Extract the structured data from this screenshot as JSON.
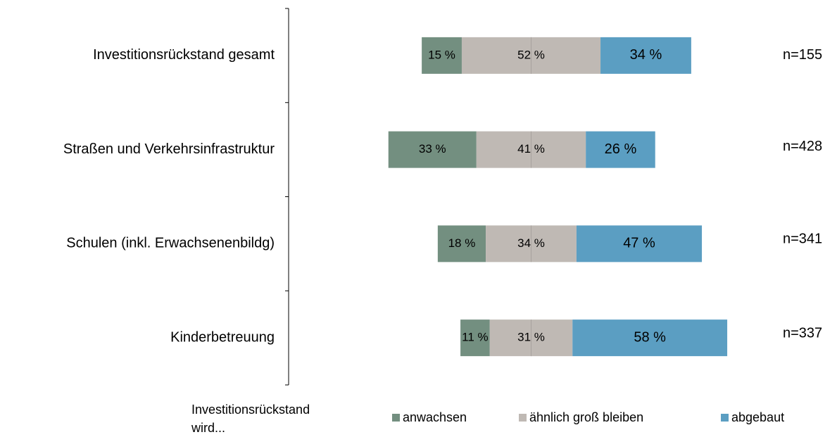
{
  "chart_data": {
    "type": "diverging_bar",
    "categories": [
      "Investitionsrückstand gesamt",
      "Straßen und Verkehrsinfrastruktur",
      "Schulen (inkl. Erwachsenenbildg)",
      "Kinderbetreuung"
    ],
    "series": [
      {
        "name": "anwachsen",
        "color": "#738f80",
        "values": [
          15,
          33,
          18,
          11
        ],
        "value_labels": [
          "15 %",
          "33 %",
          "18 %",
          "11 %"
        ]
      },
      {
        "name": "ähnlich groß bleiben",
        "color": "#bfb9b4",
        "values": [
          52,
          41,
          34,
          31
        ],
        "value_labels": [
          "52 %",
          "41 %",
          "34 %",
          "31 %"
        ]
      },
      {
        "name": "abgebaut",
        "color": "#5b9ec2",
        "values": [
          34,
          26,
          47,
          58
        ],
        "value_labels": [
          "34 %",
          "26 %",
          "47 %",
          "58 %"
        ]
      }
    ],
    "n_labels": [
      "n=155",
      "n=428",
      "n=341",
      "n=337"
    ],
    "legend_title": [
      "Investitionsrückstand",
      "wird..."
    ]
  }
}
